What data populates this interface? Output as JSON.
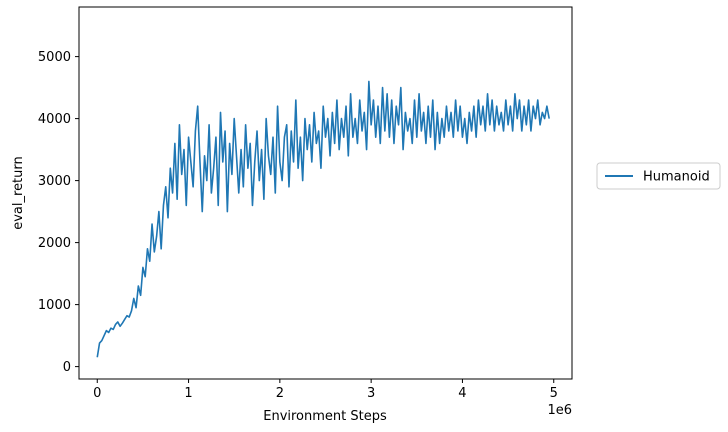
{
  "chart_data": {
    "type": "line",
    "xlabel": "Environment Steps",
    "ylabel": "eval_return",
    "x_offset_label": "1e6",
    "xlim": [
      -0.2,
      5.2
    ],
    "ylim": [
      -200,
      5800
    ],
    "x_ticks": [
      0,
      1,
      2,
      3,
      4,
      5
    ],
    "y_ticks": [
      0,
      1000,
      2000,
      3000,
      4000,
      5000
    ],
    "grid": false,
    "legend_position": "center-right-outside",
    "series": [
      {
        "name": "Humanoid",
        "color": "#1f77b4",
        "x_unit": "millions of environment steps",
        "x_start": 0,
        "x_step": 0.025,
        "values": [
          150,
          380,
          420,
          500,
          580,
          550,
          620,
          600,
          680,
          720,
          650,
          700,
          760,
          820,
          800,
          900,
          1100,
          950,
          1300,
          1150,
          1600,
          1450,
          1900,
          1700,
          2300,
          1850,
          2100,
          2500,
          1900,
          2600,
          2900,
          2400,
          3200,
          2800,
          3600,
          2700,
          3900,
          3100,
          3500,
          2600,
          3700,
          3300,
          2900,
          3800,
          4200,
          3300,
          2500,
          3400,
          3000,
          3900,
          2800,
          3200,
          3700,
          2600,
          4100,
          3300,
          3800,
          2500,
          3600,
          3100,
          4000,
          3400,
          2800,
          3500,
          2900,
          3900,
          3200,
          3600,
          2600,
          3300,
          3800,
          3000,
          3500,
          2700,
          4000,
          3400,
          3100,
          3700,
          2800,
          4200,
          3300,
          3000,
          3700,
          3900,
          2900,
          3800,
          3300,
          4300,
          3200,
          3700,
          3000,
          4000,
          3500,
          3900,
          3300,
          4100,
          3600,
          3800,
          3200,
          4200,
          3700,
          4000,
          3400,
          4100,
          3600,
          4300,
          3500,
          4000,
          3700,
          4200,
          3400,
          4400,
          3700,
          4000,
          3600,
          4300,
          3800,
          4100,
          3500,
          4600,
          3900,
          4300,
          3700,
          4200,
          3600,
          4500,
          3800,
          4400,
          3700,
          4300,
          3600,
          4200,
          3900,
          4500,
          3500,
          4100,
          3800,
          4000,
          3600,
          4300,
          3700,
          4400,
          3800,
          4100,
          3600,
          4200,
          3700,
          4300,
          3500,
          4100,
          3600,
          4000,
          3700,
          4200,
          3800,
          4100,
          3700,
          4300,
          3800,
          4200,
          3700,
          4000,
          3600,
          4100,
          3800,
          4200,
          3700,
          4300,
          3900,
          4200,
          3800,
          4400,
          3900,
          4300,
          3800,
          4200,
          3900,
          4100,
          3800,
          4300,
          3900,
          4200,
          3800,
          4400,
          4000,
          4300,
          3800,
          4200,
          3900,
          4300,
          3800,
          4200,
          4000,
          4300,
          3900,
          4100,
          4000,
          4200,
          4000
        ]
      }
    ]
  }
}
